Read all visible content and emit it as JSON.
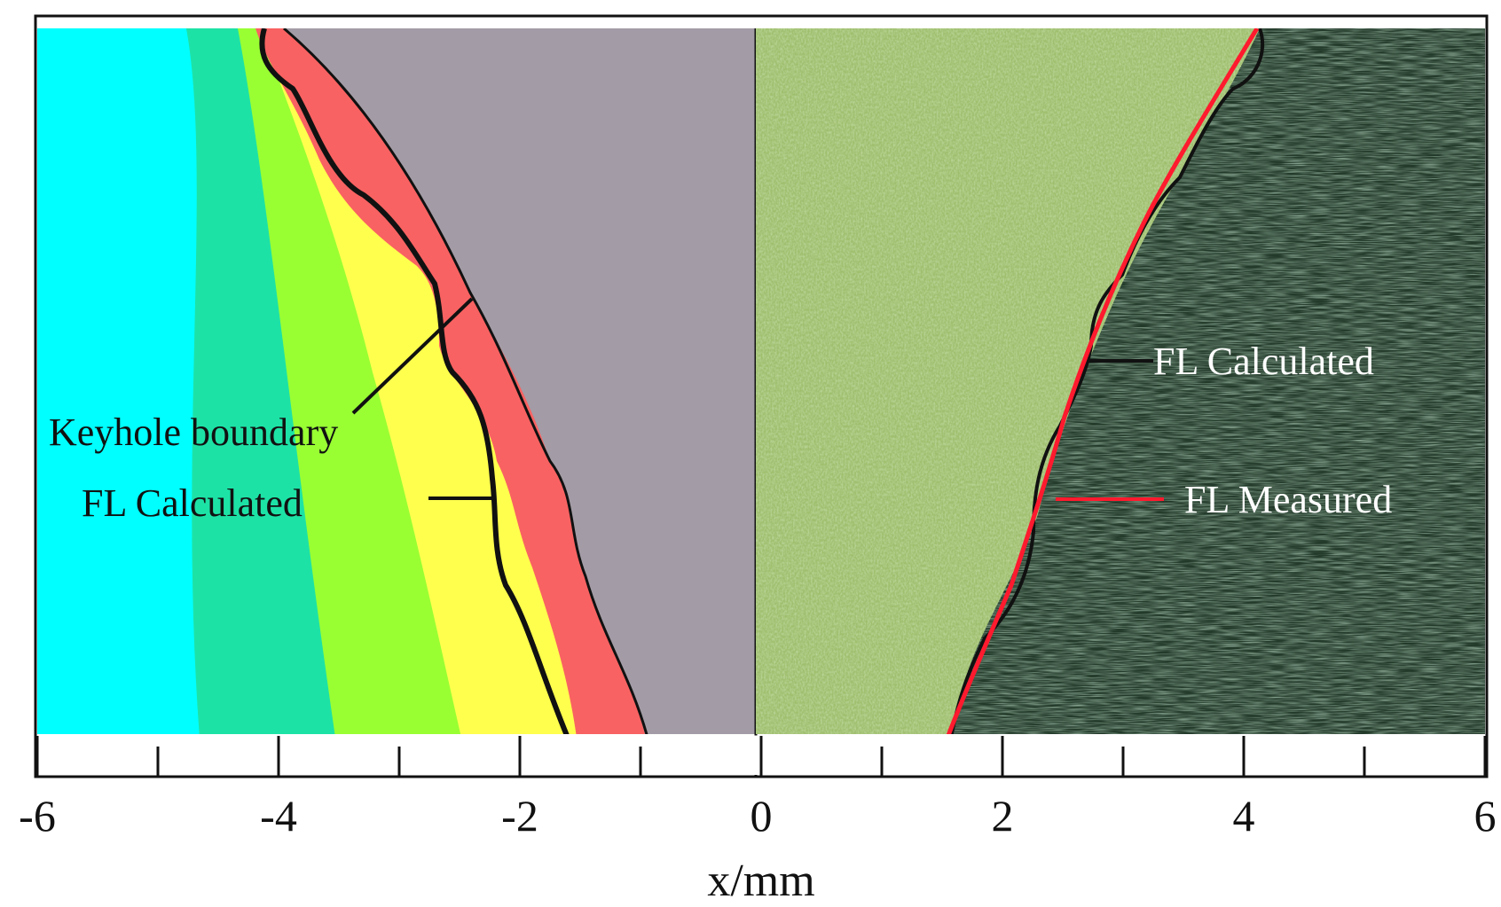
{
  "figure": {
    "x_axis": {
      "label": "x/mm",
      "min": -6,
      "max": 6,
      "major_ticks": [
        -6,
        -4,
        -2,
        0,
        2,
        4,
        6
      ],
      "major_tick_labels": [
        "-6",
        "-4",
        "-2",
        "0",
        "2",
        "4",
        "6"
      ],
      "minor_ticks": [
        -5,
        -3,
        -1,
        1,
        3,
        5
      ]
    },
    "left_panel": {
      "kind": "simulated temperature field",
      "colors": {
        "cyan": "#00ffff",
        "teal": "#1de2a6",
        "green": "#99ff33",
        "yellow": "#ffff4d",
        "red": "#f96262",
        "keyhole_gray": "#a39ca6",
        "line": "#111111"
      },
      "annotations": {
        "keyhole_boundary": "Keyhole boundary",
        "fl_calculated": "FL Calculated"
      }
    },
    "right_panel": {
      "kind": "micrograph of weld cross-section",
      "colors": {
        "light_region": "#9fbf6e",
        "dark_region": "#233a2a",
        "measured_line": "#ff1a2e",
        "calculated_line": "#111111"
      },
      "annotations": {
        "fl_calculated": "FL Calculated",
        "fl_measured": "FL Measured"
      }
    }
  }
}
